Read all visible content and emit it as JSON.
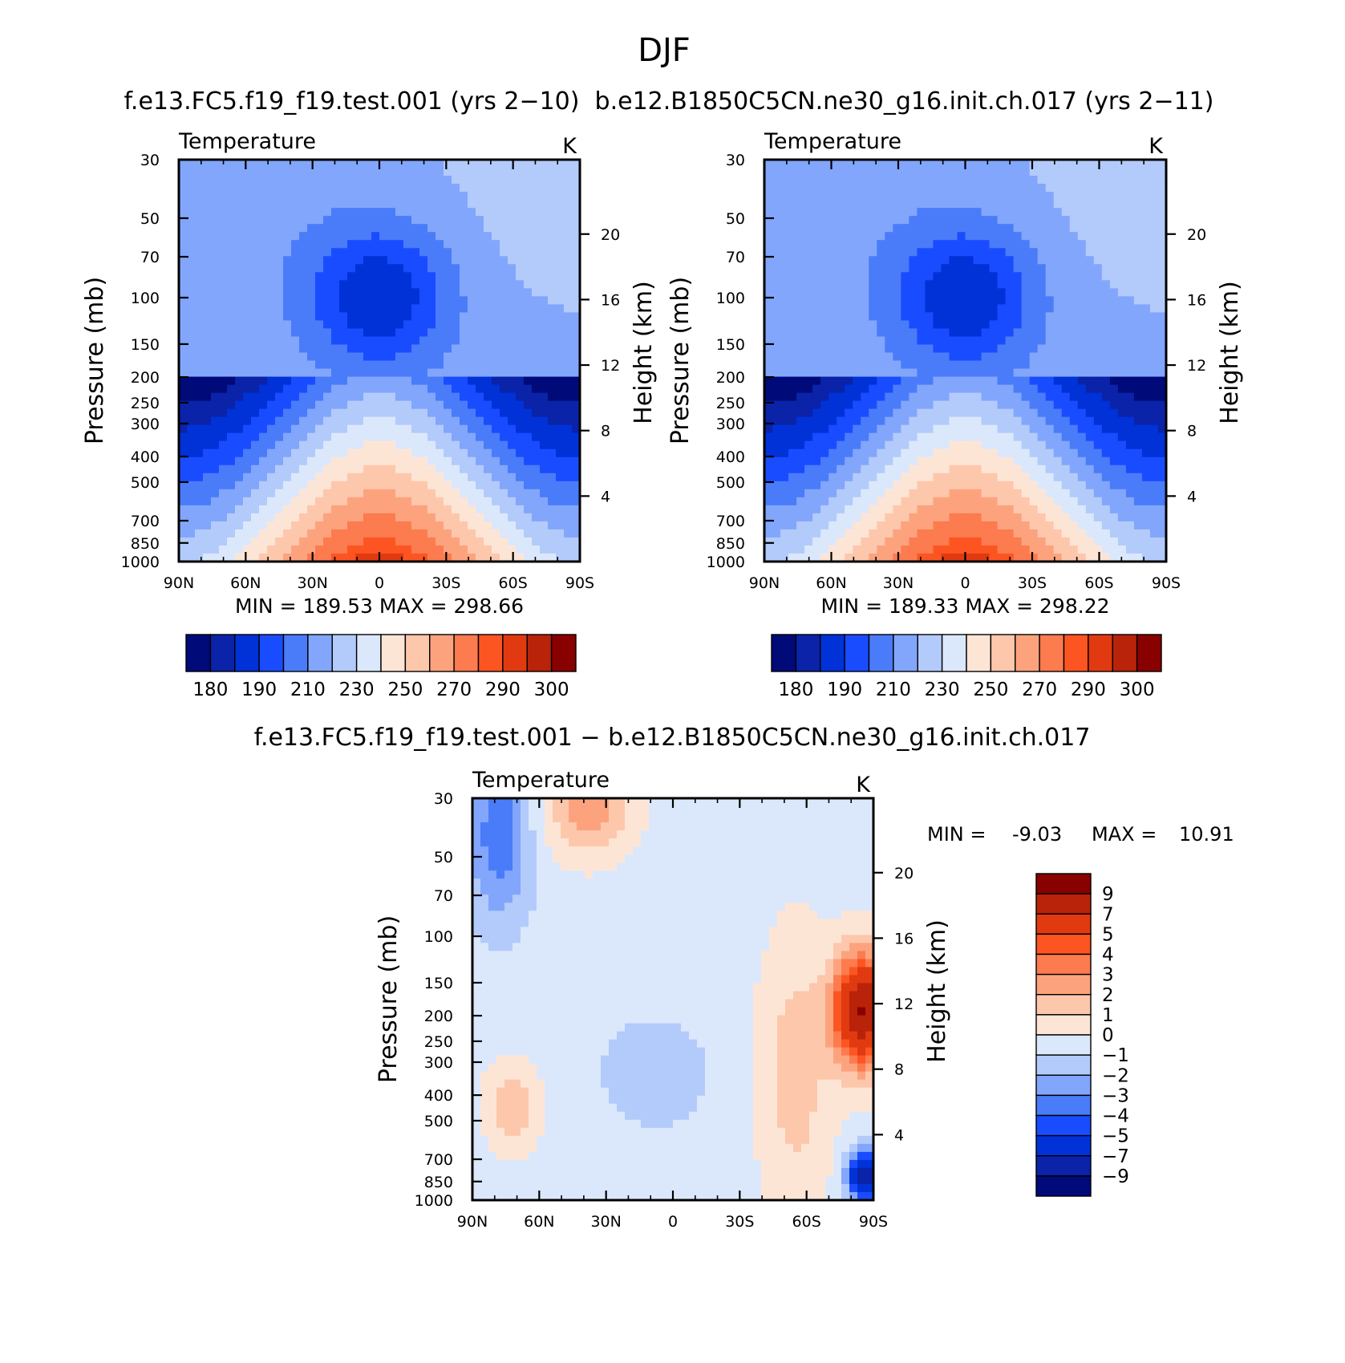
{
  "figure": {
    "title": "DJF",
    "top_subtitle": "f.e13.FC5.f19_f19.test.001 (yrs 2−10)  b.e12.B1850C5CN.ne30_g16.init.ch.017 (yrs 2−11)",
    "bottom_subtitle": "f.e13.FC5.f19_f19.test.001 − b.e12.B1850C5CN.ne30_g16.init.ch.017"
  },
  "chart_data": [
    {
      "id": "panel-a",
      "type": "heatmap",
      "title": "Temperature",
      "units": "K",
      "xlabel": "",
      "ylabel": "Pressure (mb)",
      "right_label": "Height (km)",
      "x_ticks": [
        "90N",
        "60N",
        "30N",
        "0",
        "30S",
        "60S",
        "90S"
      ],
      "x_lat": [
        90,
        60,
        30,
        0,
        -30,
        -60,
        -90
      ],
      "y_ticks": [
        30,
        50,
        70,
        100,
        150,
        200,
        250,
        300,
        400,
        500,
        700,
        850,
        1000
      ],
      "ylim": [
        1000,
        30
      ],
      "height_ticks": [
        4,
        8,
        12,
        16,
        20
      ],
      "min_label": "MIN = 189.53",
      "max_label": "MAX = 298.66",
      "min": 189.53,
      "max": 298.66,
      "colorbar_labels": [
        "180",
        "190",
        "210",
        "230",
        "250",
        "270",
        "290",
        "300"
      ],
      "contour_levels": [
        180,
        190,
        200,
        210,
        220,
        230,
        240,
        250,
        260,
        270,
        280,
        290,
        295,
        300
      ],
      "colorbar_colors": [
        "#000a78",
        "#0a23a8",
        "#0032d8",
        "#1a4cff",
        "#4a7cfa",
        "#82a6fb",
        "#b3cbfb",
        "#dbe8fc",
        "#fde5d5",
        "#fdc7ac",
        "#fca37e",
        "#fc7b4f",
        "#fc5522",
        "#e13a10",
        "#b82309",
        "#880000"
      ],
      "field_model": "background"
    },
    {
      "id": "panel-b",
      "type": "heatmap",
      "title": "Temperature",
      "units": "K",
      "xlabel": "",
      "ylabel": "Pressure (mb)",
      "right_label": "Height (km)",
      "x_ticks": [
        "90N",
        "60N",
        "30N",
        "0",
        "30S",
        "60S",
        "90S"
      ],
      "x_lat": [
        90,
        60,
        30,
        0,
        -30,
        -60,
        -90
      ],
      "y_ticks": [
        30,
        50,
        70,
        100,
        150,
        200,
        250,
        300,
        400,
        500,
        700,
        850,
        1000
      ],
      "ylim": [
        1000,
        30
      ],
      "height_ticks": [
        4,
        8,
        12,
        16,
        20
      ],
      "min_label": "MIN = 189.33",
      "max_label": "MAX = 298.22",
      "min": 189.33,
      "max": 298.22,
      "colorbar_labels": [
        "180",
        "190",
        "210",
        "230",
        "250",
        "270",
        "290",
        "300"
      ],
      "contour_levels": [
        180,
        190,
        200,
        210,
        220,
        230,
        240,
        250,
        260,
        270,
        280,
        290,
        295,
        300
      ],
      "colorbar_colors": [
        "#000a78",
        "#0a23a8",
        "#0032d8",
        "#1a4cff",
        "#4a7cfa",
        "#82a6fb",
        "#b3cbfb",
        "#dbe8fc",
        "#fde5d5",
        "#fdc7ac",
        "#fca37e",
        "#fc7b4f",
        "#fc5522",
        "#e13a10",
        "#b82309",
        "#880000"
      ],
      "field_model": "background"
    },
    {
      "id": "panel-c",
      "type": "heatmap",
      "title": "Temperature",
      "units": "K",
      "xlabel": "",
      "ylabel": "Pressure (mb)",
      "right_label": "Height (km)",
      "x_ticks": [
        "90N",
        "60N",
        "30N",
        "0",
        "30S",
        "60S",
        "90S"
      ],
      "x_lat": [
        90,
        60,
        30,
        0,
        -30,
        -60,
        -90
      ],
      "y_ticks": [
        30,
        50,
        70,
        100,
        150,
        200,
        250,
        300,
        400,
        500,
        700,
        850,
        1000
      ],
      "ylim": [
        1000,
        30
      ],
      "height_ticks": [
        4,
        8,
        12,
        16,
        20
      ],
      "min_label": "MIN =",
      "min_value": "-9.03",
      "max_label": "MAX =",
      "max_value": "10.91",
      "min": -9.03,
      "max": 10.91,
      "colorbar_labels": [
        "9",
        "7",
        "5",
        "4",
        "3",
        "2",
        "1",
        "0",
        "−1",
        "−2",
        "−3",
        "−4",
        "−5",
        "−7",
        "−9"
      ],
      "contour_levels": [
        -9,
        -7,
        -5,
        -4,
        -3,
        -2,
        -1,
        0,
        1,
        2,
        3,
        4,
        5,
        7,
        9
      ],
      "colorbar_colors": [
        "#880000",
        "#b82309",
        "#e13a10",
        "#fc5522",
        "#fc7b4f",
        "#fca37e",
        "#fdc7ac",
        "#fde5d5",
        "#dbe8fc",
        "#b3cbfb",
        "#82a6fb",
        "#4a7cfa",
        "#1a4cff",
        "#0032d8",
        "#0a23a8",
        "#000a78"
      ],
      "field_model": "difference"
    }
  ]
}
